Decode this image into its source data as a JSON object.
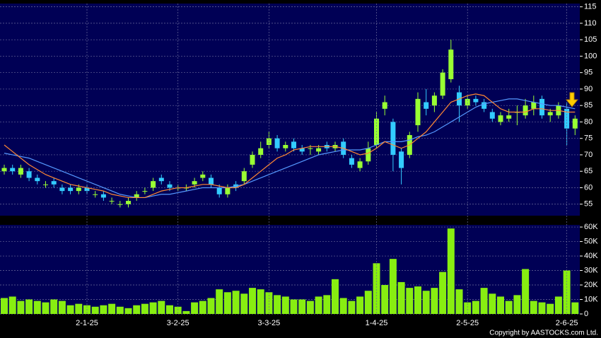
{
  "chart_data": [
    {
      "type": "candlestick",
      "open": [
        65,
        66,
        64,
        65,
        63,
        61,
        62,
        60,
        60,
        59,
        60,
        58,
        58,
        56,
        55,
        55,
        57,
        59,
        60,
        63,
        61,
        60,
        60,
        61,
        63,
        63,
        60,
        58,
        61,
        62,
        67,
        70,
        73,
        75,
        72,
        74,
        72,
        72,
        71,
        73,
        72,
        74,
        69,
        66,
        68,
        73,
        84,
        80,
        71,
        70,
        79,
        86,
        85,
        88,
        93,
        89,
        85,
        87,
        86,
        83,
        80,
        81,
        83,
        82,
        84,
        87,
        82,
        82,
        84,
        78
      ],
      "high": [
        67,
        67,
        67,
        66,
        64,
        62,
        63,
        61,
        61,
        61,
        61,
        59,
        59,
        57,
        56,
        57,
        59,
        60,
        63,
        64,
        62,
        61,
        61,
        63,
        65,
        64,
        61,
        61,
        62,
        66,
        71,
        74,
        77,
        76,
        74,
        75,
        73,
        73,
        73,
        74,
        74,
        75,
        70,
        69,
        74,
        83,
        88,
        81,
        72,
        77,
        89,
        90,
        89,
        96,
        105,
        91,
        88,
        88,
        87,
        84,
        83,
        84,
        85,
        87,
        88,
        88,
        84,
        86,
        86,
        82
      ],
      "low": [
        64,
        64,
        63,
        62,
        61,
        60,
        60,
        58,
        58,
        58,
        58,
        57,
        56,
        55,
        54,
        54,
        56,
        58,
        59,
        61,
        59,
        59,
        59,
        60,
        62,
        60,
        57,
        57,
        59,
        61,
        66,
        69,
        72,
        71,
        71,
        71,
        70,
        70,
        70,
        71,
        71,
        69,
        66,
        65,
        67,
        72,
        82,
        65,
        61,
        69,
        77,
        82,
        83,
        87,
        92,
        80,
        84,
        85,
        83,
        80,
        79,
        80,
        79,
        81,
        82,
        81,
        80,
        81,
        73,
        76
      ],
      "close": [
        66,
        65,
        66,
        63,
        62,
        61,
        61,
        59,
        59,
        60,
        59,
        58,
        57,
        56,
        55,
        56,
        58,
        59,
        62,
        62,
        60,
        60,
        60,
        62,
        64,
        61,
        58,
        60,
        60,
        65,
        70,
        72,
        75,
        72,
        73,
        72,
        71,
        72,
        72,
        72,
        73,
        70,
        67,
        68,
        72,
        81,
        86,
        70,
        66,
        76,
        87,
        84,
        88,
        95,
        102,
        85,
        87,
        86,
        84,
        81,
        82,
        82,
        83,
        85,
        86,
        82,
        83,
        85,
        78,
        81
      ],
      "up_color": "#99ff33",
      "down_color": "#33ccff",
      "lines": [
        {
          "color": "#5599ff",
          "values": [
            70.5,
            70,
            69.5,
            69,
            68,
            67,
            66,
            65,
            64,
            63,
            62,
            61,
            60,
            59,
            58,
            57.5,
            57,
            57,
            57.5,
            58,
            58,
            58.5,
            59,
            59.5,
            60,
            60,
            60,
            60,
            60.5,
            61,
            62,
            63,
            64,
            65,
            66,
            67,
            68,
            69,
            70,
            70.5,
            71,
            71.5,
            71.5,
            71.5,
            72,
            73,
            74,
            74,
            74,
            74.5,
            75.5,
            76,
            77,
            78.5,
            80,
            81.5,
            83,
            84.5,
            85.5,
            86,
            86.5,
            87,
            87,
            86.5,
            86,
            85.5,
            85,
            85,
            84.5,
            84
          ]
        },
        {
          "color": "#ff8833",
          "values": [
            73,
            71,
            69,
            67,
            65.5,
            64,
            63,
            62,
            61,
            60.5,
            60,
            59.5,
            59,
            58,
            57.5,
            57,
            57,
            57,
            58,
            59,
            59.5,
            60,
            60,
            60.5,
            61,
            61,
            60.5,
            60,
            60,
            61,
            63,
            65,
            67,
            69,
            70,
            71.5,
            72,
            72.5,
            72.5,
            72.5,
            72.5,
            72,
            71,
            70,
            70.5,
            72,
            74,
            73,
            72,
            73,
            75,
            77,
            80,
            83,
            86,
            87,
            88,
            88.5,
            88,
            86,
            84,
            83,
            83,
            83,
            84,
            84,
            83.5,
            83.5,
            83,
            83
          ]
        }
      ],
      "ylim": [
        51.5,
        116
      ],
      "yticks": [
        55,
        60,
        65,
        70,
        75,
        80,
        85,
        90,
        95,
        100,
        105,
        110,
        115
      ],
      "grid": true
    },
    {
      "type": "bar",
      "color": "#88ee11",
      "values": [
        11000,
        12000,
        9000,
        10000,
        9000,
        8000,
        10000,
        9000,
        6000,
        7000,
        6000,
        5000,
        6000,
        7000,
        5000,
        4000,
        6000,
        7000,
        8000,
        9000,
        6000,
        5000,
        2000,
        8000,
        9000,
        11000,
        17000,
        15000,
        16000,
        14000,
        18000,
        17000,
        15000,
        13000,
        12000,
        10000,
        10000,
        9000,
        12000,
        13000,
        24000,
        11000,
        9000,
        12000,
        16000,
        35000,
        20000,
        38000,
        22000,
        18000,
        19000,
        16000,
        18000,
        29000,
        59000,
        17000,
        8000,
        9000,
        18000,
        14000,
        12000,
        9000,
        13000,
        31000,
        9000,
        8000,
        7000,
        12000,
        30000,
        8000
      ],
      "ylim": [
        0,
        61500
      ],
      "yticks": [
        0,
        {
          "value": 10000,
          "label": "10K"
        },
        {
          "value": 20000,
          "label": "20K"
        },
        {
          "value": 30000,
          "label": "30K"
        },
        {
          "value": 40000,
          "label": "40K"
        },
        {
          "value": 50000,
          "label": "50K"
        },
        {
          "value": 60000,
          "label": "60K"
        }
      ],
      "xticks": [
        {
          "value": 10,
          "label": "2-1-25"
        },
        {
          "value": 21,
          "label": "3-2-25"
        },
        {
          "value": 32,
          "label": "3-3-25"
        },
        {
          "value": 45,
          "label": "1-4-25"
        },
        {
          "value": 56,
          "label": "2-5-25"
        },
        {
          "value": 68,
          "label": "2-6-25"
        }
      ],
      "grid": true
    }
  ],
  "footer": "Copyright by AASTOCKS.com Ltd."
}
